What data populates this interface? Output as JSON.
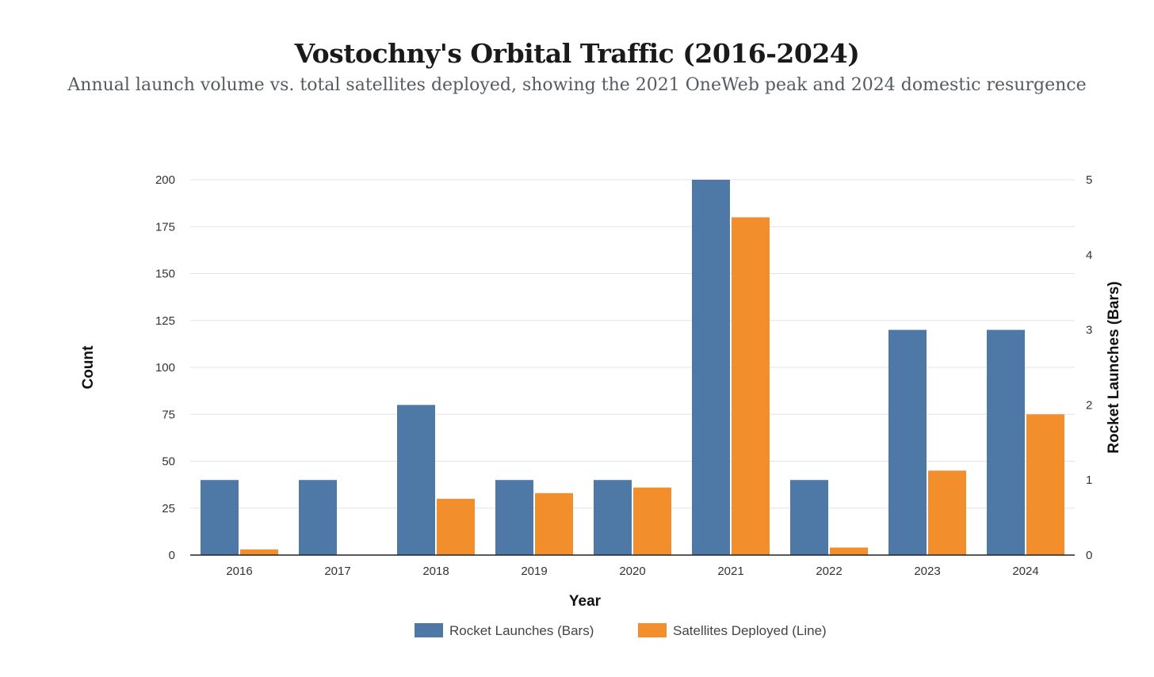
{
  "chart_data": {
    "type": "bar",
    "title": "Vostochny's Orbital Traffic (2016-2024)",
    "subtitle": "Annual launch volume vs. total satellites deployed, showing the 2021 OneWeb peak and 2024 domestic resurgence",
    "xlabel": "Year",
    "ylabel_left": "Count",
    "ylabel_right": "Rocket Launches (Bars)",
    "categories": [
      "2016",
      "2017",
      "2018",
      "2019",
      "2020",
      "2021",
      "2022",
      "2023",
      "2024"
    ],
    "ylim_left": [
      0,
      200
    ],
    "ylim_right": [
      0,
      5
    ],
    "yticks_left": [
      "0",
      "25",
      "50",
      "75",
      "100",
      "125",
      "150",
      "175",
      "200"
    ],
    "yticks_right": [
      "0",
      "1",
      "2",
      "3",
      "4",
      "5"
    ],
    "grid": true,
    "legend_position": "bottom",
    "series": [
      {
        "name": "Rocket Launches (Bars)",
        "axis": "right",
        "color": "#4e79a7",
        "values": [
          1,
          1,
          2,
          1,
          1,
          5,
          1,
          3,
          3
        ]
      },
      {
        "name": "Satellites Deployed (Line)",
        "axis": "left",
        "color": "#f28e2b",
        "values": [
          3,
          0,
          30,
          33,
          36,
          180,
          4,
          45,
          75
        ]
      }
    ]
  }
}
